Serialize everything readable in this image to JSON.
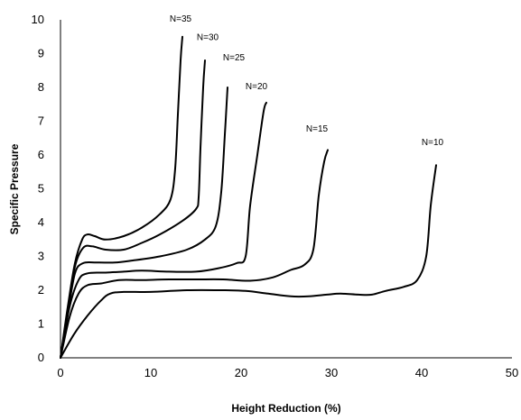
{
  "chart_data": {
    "type": "line",
    "title": "",
    "xlabel": "Height Reduction (%)",
    "ylabel": "Specific Pressure",
    "xlim": [
      0,
      50
    ],
    "ylim": [
      0,
      10
    ],
    "x_ticks": [
      "0",
      "10",
      "20",
      "30",
      "40",
      "50"
    ],
    "y_ticks": [
      "0",
      "1",
      "2",
      "3",
      "4",
      "5",
      "6",
      "7",
      "8",
      "9",
      "10"
    ],
    "grid": false,
    "legend": "none",
    "series": [
      {
        "name": "N=35",
        "points": [
          [
            0,
            0
          ],
          [
            0.8,
            1.5
          ],
          [
            1.6,
            2.8
          ],
          [
            2.4,
            3.5
          ],
          [
            3,
            3.65
          ],
          [
            3.8,
            3.6
          ],
          [
            5,
            3.5
          ],
          [
            7,
            3.6
          ],
          [
            9,
            3.85
          ],
          [
            11,
            4.25
          ],
          [
            12.2,
            4.7
          ],
          [
            12.7,
            5.6
          ],
          [
            13,
            7.2
          ],
          [
            13.3,
            8.8
          ],
          [
            13.5,
            9.5
          ]
        ],
        "label_x": 13.3,
        "label_y": 9.95
      },
      {
        "name": "N=30",
        "points": [
          [
            0,
            0
          ],
          [
            0.8,
            1.4
          ],
          [
            1.6,
            2.7
          ],
          [
            2.5,
            3.25
          ],
          [
            3.5,
            3.3
          ],
          [
            5,
            3.2
          ],
          [
            7,
            3.2
          ],
          [
            9,
            3.4
          ],
          [
            11,
            3.65
          ],
          [
            13.5,
            4.05
          ],
          [
            15,
            4.4
          ],
          [
            15.3,
            4.75
          ],
          [
            15.5,
            6.2
          ],
          [
            15.8,
            8
          ],
          [
            16,
            8.8
          ]
        ],
        "label_x": 16.3,
        "label_y": 9.4
      },
      {
        "name": "N=25",
        "points": [
          [
            0,
            0
          ],
          [
            0.8,
            1.3
          ],
          [
            1.6,
            2.5
          ],
          [
            2.5,
            2.8
          ],
          [
            4,
            2.82
          ],
          [
            6,
            2.82
          ],
          [
            8,
            2.88
          ],
          [
            11,
            3.0
          ],
          [
            14,
            3.2
          ],
          [
            16,
            3.5
          ],
          [
            17.2,
            3.9
          ],
          [
            17.8,
            4.9
          ],
          [
            18.2,
            6.6
          ],
          [
            18.5,
            8
          ]
        ],
        "label_x": 19.2,
        "label_y": 8.8
      },
      {
        "name": "N=20",
        "points": [
          [
            0,
            0
          ],
          [
            1,
            1.5
          ],
          [
            2,
            2.3
          ],
          [
            3,
            2.5
          ],
          [
            5,
            2.52
          ],
          [
            7,
            2.55
          ],
          [
            9,
            2.58
          ],
          [
            12,
            2.55
          ],
          [
            15,
            2.55
          ],
          [
            17.5,
            2.65
          ],
          [
            19.5,
            2.8
          ],
          [
            20.5,
            3.0
          ],
          [
            21,
            4.5
          ],
          [
            21.8,
            6
          ],
          [
            22.5,
            7.3
          ],
          [
            22.8,
            7.55
          ]
        ],
        "label_x": 21.7,
        "label_y": 7.95
      },
      {
        "name": "N=15",
        "points": [
          [
            0,
            0
          ],
          [
            1,
            1.2
          ],
          [
            2,
            1.9
          ],
          [
            3,
            2.15
          ],
          [
            4.5,
            2.2
          ],
          [
            6.5,
            2.3
          ],
          [
            9,
            2.3
          ],
          [
            12,
            2.32
          ],
          [
            15,
            2.32
          ],
          [
            18,
            2.32
          ],
          [
            21,
            2.28
          ],
          [
            23.5,
            2.38
          ],
          [
            25.5,
            2.6
          ],
          [
            27,
            2.75
          ],
          [
            28,
            3.2
          ],
          [
            28.6,
            4.8
          ],
          [
            29.2,
            5.8
          ],
          [
            29.6,
            6.15
          ]
        ],
        "label_x": 28.4,
        "label_y": 6.7
      },
      {
        "name": "N=10",
        "points": [
          [
            0,
            0
          ],
          [
            1.5,
            0.7
          ],
          [
            3,
            1.25
          ],
          [
            4.5,
            1.7
          ],
          [
            5.5,
            1.9
          ],
          [
            7,
            1.95
          ],
          [
            10,
            1.95
          ],
          [
            14,
            2.0
          ],
          [
            18,
            2.0
          ],
          [
            20.5,
            1.98
          ],
          [
            23,
            1.9
          ],
          [
            25.5,
            1.82
          ],
          [
            27.5,
            1.82
          ],
          [
            29.5,
            1.87
          ],
          [
            31,
            1.9
          ],
          [
            33,
            1.87
          ],
          [
            34.5,
            1.87
          ],
          [
            36,
            1.98
          ],
          [
            38,
            2.1
          ],
          [
            39.5,
            2.3
          ],
          [
            40.5,
            3.0
          ],
          [
            41,
            4.5
          ],
          [
            41.6,
            5.7
          ]
        ],
        "label_x": 41.2,
        "label_y": 6.3
      }
    ]
  }
}
